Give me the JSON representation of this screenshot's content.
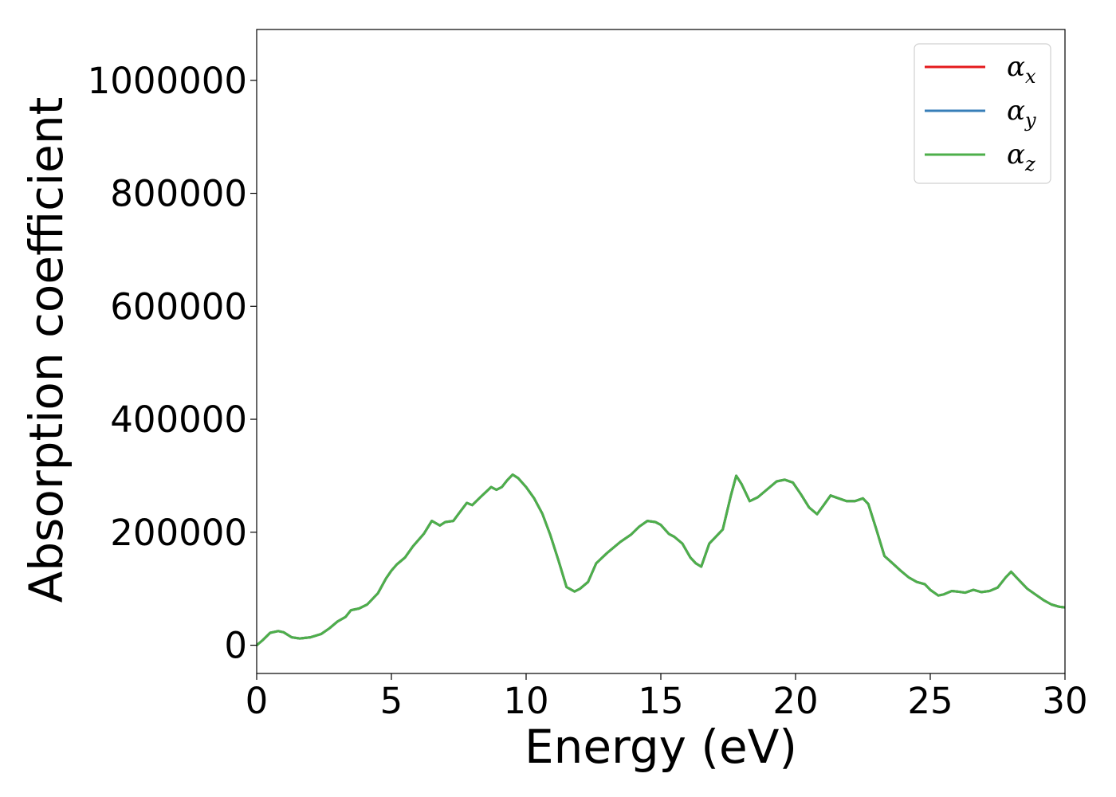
{
  "chart_data": {
    "type": "line",
    "xlabel": "Energy (eV)",
    "ylabel": "Absorption coefficient",
    "xlim": [
      0,
      30
    ],
    "ylim": [
      -50000,
      1090000
    ],
    "xticks": [
      0,
      5,
      10,
      15,
      20,
      25,
      30
    ],
    "yticks": [
      0,
      200000,
      400000,
      600000,
      800000,
      1000000
    ],
    "grid": false,
    "legend_position": "top-right",
    "x": [
      0,
      0.2,
      0.5,
      0.8,
      1.0,
      1.3,
      1.6,
      2.0,
      2.4,
      2.7,
      3.0,
      3.3,
      3.5,
      3.8,
      4.1,
      4.5,
      4.8,
      5.0,
      5.2,
      5.5,
      5.8,
      6.2,
      6.5,
      6.8,
      7.0,
      7.3,
      7.5,
      7.8,
      8.0,
      8.3,
      8.7,
      8.9,
      9.1,
      9.3,
      9.5,
      9.7,
      10.0,
      10.3,
      10.6,
      10.9,
      11.2,
      11.5,
      11.8,
      12.0,
      12.3,
      12.6,
      13.0,
      13.5,
      13.9,
      14.2,
      14.5,
      14.8,
      15.0,
      15.3,
      15.5,
      15.8,
      16.1,
      16.3,
      16.5,
      16.8,
      17.0,
      17.3,
      17.6,
      17.8,
      18.0,
      18.3,
      18.6,
      19.0,
      19.3,
      19.6,
      19.9,
      20.2,
      20.5,
      20.8,
      21.0,
      21.3,
      21.6,
      21.9,
      22.2,
      22.5,
      22.7,
      23.0,
      23.3,
      23.6,
      23.9,
      24.2,
      24.5,
      24.8,
      25.0,
      25.3,
      25.5,
      25.8,
      26.0,
      26.3,
      26.6,
      26.9,
      27.2,
      27.5,
      27.8,
      28.0,
      28.3,
      28.6,
      28.9,
      29.2,
      29.5,
      29.8,
      30.0
    ],
    "series": [
      {
        "name": "α_x",
        "color": "#e41a1c",
        "values": [
          0,
          8000,
          22000,
          25000,
          23000,
          14000,
          12000,
          14000,
          20000,
          30000,
          42000,
          50000,
          62000,
          65000,
          72000,
          92000,
          118000,
          132000,
          143000,
          155000,
          175000,
          197000,
          220000,
          212000,
          218000,
          220000,
          233000,
          252000,
          248000,
          262000,
          280000,
          275000,
          280000,
          292000,
          302000,
          296000,
          280000,
          260000,
          233000,
          195000,
          150000,
          103000,
          95000,
          100000,
          112000,
          145000,
          163000,
          183000,
          196000,
          210000,
          220000,
          218000,
          213000,
          197000,
          192000,
          180000,
          155000,
          145000,
          139000,
          180000,
          190000,
          205000,
          265000,
          300000,
          285000,
          255000,
          262000,
          278000,
          290000,
          293000,
          288000,
          267000,
          244000,
          232000,
          245000,
          265000,
          260000,
          255000,
          255000,
          260000,
          250000,
          205000,
          158000,
          145000,
          132000,
          120000,
          112000,
          108000,
          98000,
          88000,
          90000,
          96000,
          95000,
          93000,
          98000,
          94000,
          96000,
          102000,
          120000,
          130000,
          115000,
          100000,
          90000,
          80000,
          72000,
          68000,
          67000
        ]
      },
      {
        "name": "α_y",
        "color": "#377eb8",
        "values": [
          0,
          8000,
          22000,
          25000,
          23000,
          14000,
          12000,
          14000,
          20000,
          30000,
          42000,
          50000,
          62000,
          65000,
          72000,
          92000,
          118000,
          132000,
          143000,
          155000,
          175000,
          197000,
          220000,
          212000,
          218000,
          220000,
          233000,
          252000,
          248000,
          262000,
          280000,
          275000,
          280000,
          292000,
          302000,
          296000,
          280000,
          260000,
          233000,
          195000,
          150000,
          103000,
          95000,
          100000,
          112000,
          145000,
          163000,
          183000,
          196000,
          210000,
          220000,
          218000,
          213000,
          197000,
          192000,
          180000,
          155000,
          145000,
          139000,
          180000,
          190000,
          205000,
          265000,
          300000,
          285000,
          255000,
          262000,
          278000,
          290000,
          293000,
          288000,
          267000,
          244000,
          232000,
          245000,
          265000,
          260000,
          255000,
          255000,
          260000,
          250000,
          205000,
          158000,
          145000,
          132000,
          120000,
          112000,
          108000,
          98000,
          88000,
          90000,
          96000,
          95000,
          93000,
          98000,
          94000,
          96000,
          102000,
          120000,
          130000,
          115000,
          100000,
          90000,
          80000,
          72000,
          68000,
          67000
        ]
      },
      {
        "name": "α_z",
        "color": "#4daf4a",
        "values": [
          0,
          8000,
          22000,
          25000,
          23000,
          14000,
          12000,
          14000,
          20000,
          30000,
          42000,
          50000,
          62000,
          65000,
          72000,
          92000,
          118000,
          132000,
          143000,
          155000,
          175000,
          197000,
          220000,
          212000,
          218000,
          220000,
          233000,
          252000,
          248000,
          262000,
          280000,
          275000,
          280000,
          292000,
          302000,
          296000,
          280000,
          260000,
          233000,
          195000,
          150000,
          103000,
          95000,
          100000,
          112000,
          145000,
          163000,
          183000,
          196000,
          210000,
          220000,
          218000,
          213000,
          197000,
          192000,
          180000,
          155000,
          145000,
          139000,
          180000,
          190000,
          205000,
          265000,
          300000,
          285000,
          255000,
          262000,
          278000,
          290000,
          293000,
          288000,
          267000,
          244000,
          232000,
          245000,
          265000,
          260000,
          255000,
          255000,
          260000,
          250000,
          205000,
          158000,
          145000,
          132000,
          120000,
          112000,
          108000,
          98000,
          88000,
          90000,
          96000,
          95000,
          93000,
          98000,
          94000,
          96000,
          102000,
          120000,
          130000,
          115000,
          100000,
          90000,
          80000,
          72000,
          68000,
          67000
        ]
      }
    ],
    "legend": [
      {
        "symbol": "α",
        "sub": "x",
        "color": "#e41a1c"
      },
      {
        "symbol": "α",
        "sub": "y",
        "color": "#377eb8"
      },
      {
        "symbol": "α",
        "sub": "z",
        "color": "#4daf4a"
      }
    ]
  }
}
